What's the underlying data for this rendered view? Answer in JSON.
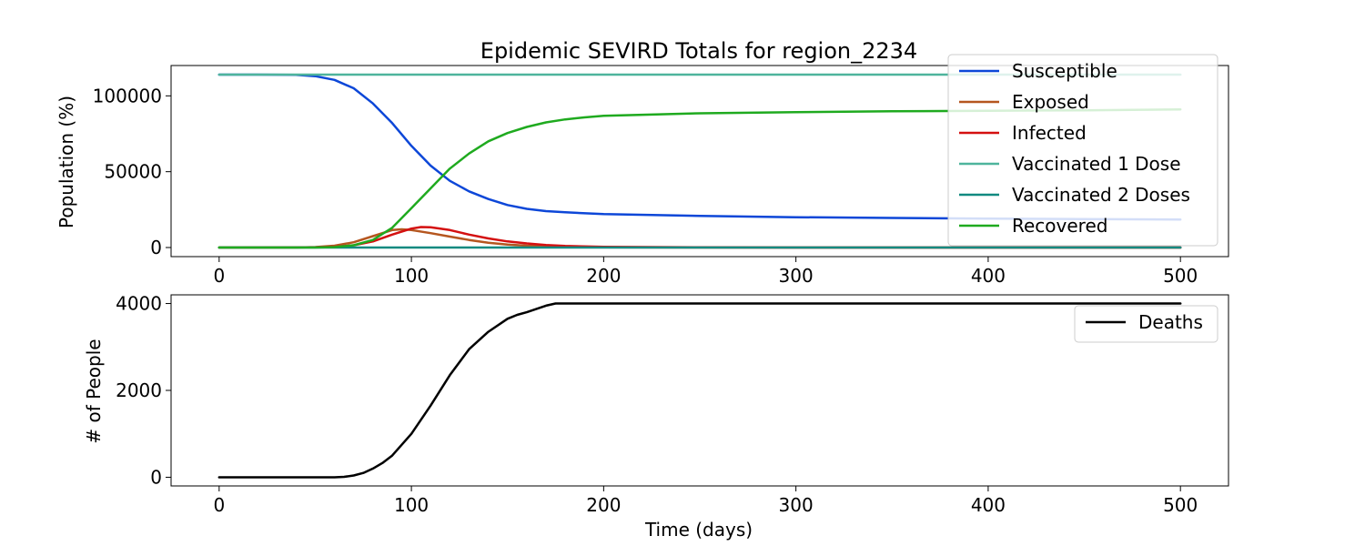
{
  "chart_data": [
    {
      "type": "line",
      "title": "Epidemic SEVIRD Totals for region_2234",
      "xlabel": "",
      "ylabel": "Population (%)",
      "xlim": [
        -25,
        525
      ],
      "ylim": [
        -6000,
        120000
      ],
      "xticks": [
        0,
        100,
        200,
        300,
        400,
        500
      ],
      "yticks": [
        0,
        50000,
        100000
      ],
      "grid": false,
      "legend": "top-right",
      "series": [
        {
          "name": "Susceptible",
          "color": "#0d47d8",
          "x": [
            0,
            20,
            40,
            50,
            60,
            70,
            80,
            90,
            100,
            110,
            120,
            130,
            140,
            150,
            160,
            170,
            180,
            200,
            250,
            300,
            350,
            400,
            450,
            500
          ],
          "y": [
            114000,
            114000,
            113800,
            113000,
            110500,
            105000,
            95000,
            82000,
            67000,
            54000,
            44000,
            37000,
            32000,
            28000,
            25500,
            24000,
            23200,
            22000,
            20800,
            20000,
            19500,
            19000,
            18800,
            18500
          ]
        },
        {
          "name": "Exposed",
          "color": "#b5561f",
          "x": [
            0,
            40,
            50,
            60,
            70,
            80,
            90,
            95,
            100,
            110,
            120,
            130,
            140,
            150,
            160,
            170,
            180,
            200,
            250,
            300,
            500
          ],
          "y": [
            0,
            0,
            300,
            1200,
            3500,
            7500,
            11500,
            12000,
            11500,
            9500,
            7200,
            5000,
            3200,
            2000,
            1200,
            700,
            400,
            150,
            0,
            0,
            0
          ]
        },
        {
          "name": "Infected",
          "color": "#d41010",
          "x": [
            0,
            50,
            60,
            70,
            80,
            90,
            100,
            105,
            110,
            120,
            130,
            140,
            150,
            160,
            170,
            180,
            200,
            250,
            300,
            500
          ],
          "y": [
            0,
            100,
            400,
            1500,
            4000,
            8500,
            12500,
            13500,
            13300,
            11500,
            8500,
            6000,
            4000,
            2700,
            1700,
            1000,
            400,
            100,
            0,
            0
          ]
        },
        {
          "name": "Vaccinated 1 Dose",
          "color": "#4eb49c",
          "x": [
            0,
            500
          ],
          "y": [
            114000,
            114000
          ]
        },
        {
          "name": "Vaccinated 2 Doses",
          "color": "#118a80",
          "x": [
            0,
            500
          ],
          "y": [
            0,
            0
          ]
        },
        {
          "name": "Recovered",
          "color": "#1faa1f",
          "x": [
            0,
            50,
            60,
            70,
            80,
            90,
            100,
            110,
            120,
            130,
            140,
            150,
            160,
            170,
            180,
            190,
            200,
            250,
            300,
            350,
            400,
            450,
            500
          ],
          "y": [
            0,
            0,
            300,
            1500,
            5000,
            13000,
            26000,
            39000,
            52000,
            62000,
            70000,
            75500,
            79500,
            82500,
            84500,
            85800,
            86800,
            88500,
            89300,
            89800,
            90200,
            90500,
            91000
          ]
        }
      ]
    },
    {
      "type": "line",
      "title": "",
      "xlabel": "Time (days)",
      "ylabel": "# of People",
      "xlim": [
        -25,
        525
      ],
      "ylim": [
        -200,
        4200
      ],
      "xticks": [
        0,
        100,
        200,
        300,
        400,
        500
      ],
      "yticks": [
        0,
        2000,
        4000
      ],
      "grid": false,
      "legend": "top-right",
      "series": [
        {
          "name": "Deaths",
          "color": "#000000",
          "x": [
            0,
            60,
            65,
            70,
            75,
            80,
            85,
            90,
            95,
            100,
            110,
            120,
            130,
            140,
            150,
            155,
            160,
            170,
            175,
            200,
            300,
            400,
            500
          ],
          "y": [
            0,
            0,
            10,
            40,
            100,
            200,
            330,
            500,
            750,
            1000,
            1650,
            2350,
            2950,
            3350,
            3650,
            3740,
            3800,
            3950,
            4000,
            4000,
            4000,
            4000,
            4000
          ]
        }
      ]
    }
  ]
}
